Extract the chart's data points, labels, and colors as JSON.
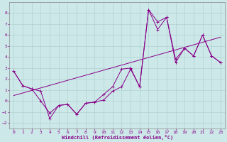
{
  "xlabel": "Windchill (Refroidissement éolien,°C)",
  "xlim": [
    -0.5,
    23.5
  ],
  "ylim": [
    -2.5,
    9.0
  ],
  "yticks": [
    -2,
    -1,
    0,
    1,
    2,
    3,
    4,
    5,
    6,
    7,
    8
  ],
  "xticks": [
    0,
    1,
    2,
    3,
    4,
    5,
    6,
    7,
    8,
    9,
    10,
    11,
    12,
    13,
    14,
    15,
    16,
    17,
    18,
    19,
    20,
    21,
    22,
    23
  ],
  "bg_color": "#cce8e8",
  "line_color": "#880088",
  "grid_color": "#aacccc",
  "series1_x": [
    0,
    1,
    2,
    3,
    4,
    5,
    6,
    7,
    8,
    9,
    10,
    11,
    12,
    13,
    14,
    15,
    16,
    17,
    18,
    19,
    20,
    21,
    22,
    23
  ],
  "series1_y": [
    2.7,
    1.4,
    1.1,
    0.0,
    -1.1,
    -0.4,
    -0.3,
    -1.2,
    -0.2,
    -0.1,
    0.1,
    0.9,
    1.3,
    2.9,
    1.3,
    8.3,
    7.2,
    7.6,
    3.5,
    4.8,
    4.1,
    6.0,
    4.1,
    3.5
  ],
  "series2_x": [
    0,
    1,
    2,
    3,
    4,
    5,
    6,
    7,
    8,
    9,
    10,
    11,
    12,
    13,
    14,
    15,
    16,
    17,
    18,
    19,
    20,
    21,
    22,
    23
  ],
  "series2_y": [
    2.7,
    1.4,
    1.1,
    0.9,
    -1.6,
    -0.4,
    -0.3,
    -1.2,
    -0.2,
    -0.1,
    0.6,
    1.3,
    2.9,
    3.0,
    1.3,
    8.3,
    6.5,
    7.6,
    3.8,
    4.8,
    4.1,
    6.0,
    4.1,
    3.5
  ],
  "series3_x": [
    0,
    23
  ],
  "series3_y": [
    0.5,
    5.8
  ]
}
